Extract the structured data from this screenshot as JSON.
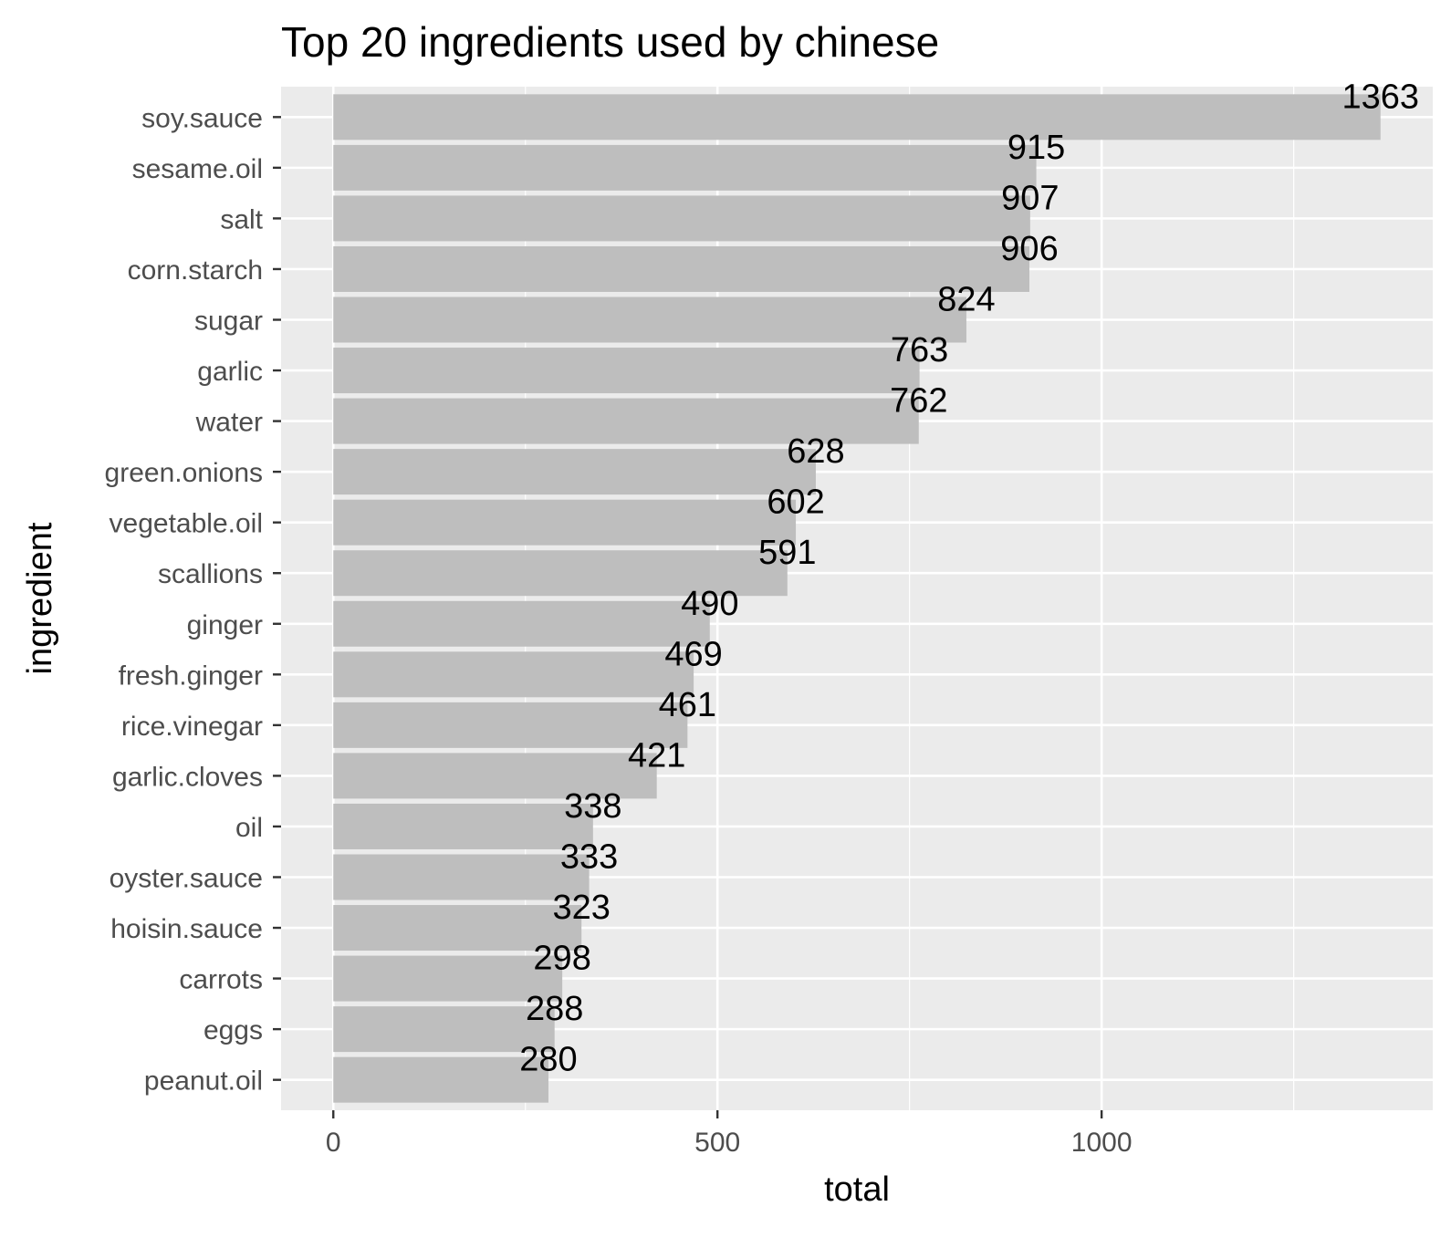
{
  "chart_data": {
    "type": "bar",
    "orientation": "horizontal",
    "title": "Top 20 ingredients used by chinese",
    "xlabel": "total",
    "ylabel": "ingredient",
    "categories": [
      "soy.sauce",
      "sesame.oil",
      "salt",
      "corn.starch",
      "sugar",
      "garlic",
      "water",
      "green.onions",
      "vegetable.oil",
      "scallions",
      "ginger",
      "fresh.ginger",
      "rice.vinegar",
      "garlic.cloves",
      "oil",
      "oyster.sauce",
      "hoisin.sauce",
      "carrots",
      "eggs",
      "peanut.oil"
    ],
    "values": [
      1363,
      915,
      907,
      906,
      824,
      763,
      762,
      628,
      602,
      591,
      490,
      469,
      461,
      421,
      338,
      333,
      323,
      298,
      288,
      280
    ],
    "data_labels": [
      "1363",
      "915",
      "907",
      "906",
      "824",
      "763",
      "762",
      "628",
      "602",
      "591",
      "490",
      "469",
      "461",
      "421",
      "338",
      "333",
      "323",
      "298",
      "288",
      "280"
    ],
    "xticks": [
      0,
      500,
      1000
    ],
    "xtick_labels": [
      "0",
      "500",
      "1000"
    ],
    "xlim": [
      -68,
      1431
    ],
    "grid": true,
    "legend": "none",
    "colors": {
      "bar": "#bebebe",
      "panel": "#ebebeb",
      "grid": "#ffffff",
      "text": "#000000",
      "tick_text": "#4d4d4d"
    }
  }
}
